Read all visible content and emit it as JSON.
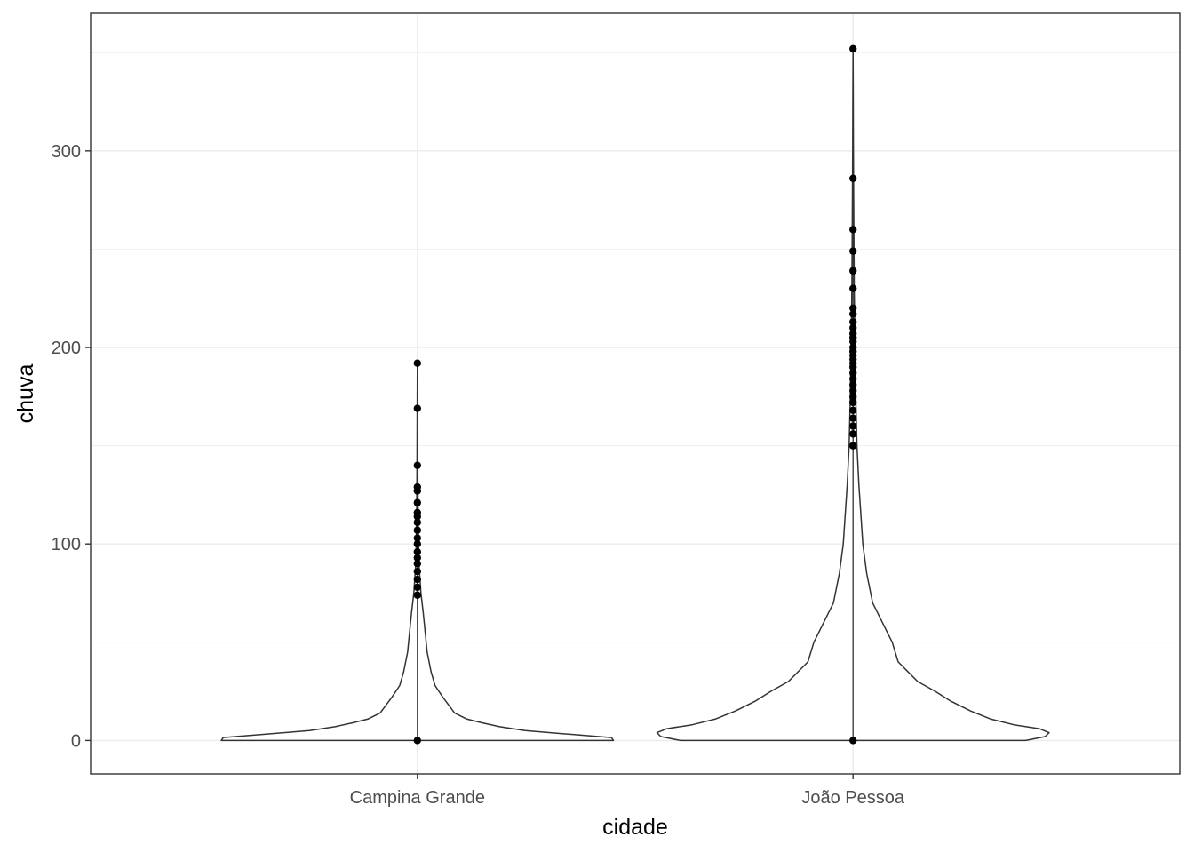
{
  "chart_data": {
    "type": "violin",
    "xlabel": "cidade",
    "ylabel": "chuva",
    "categories": [
      "Campina Grande",
      "João Pessoa"
    ],
    "ylim": [
      -17,
      370
    ],
    "yticks": [
      0,
      100,
      200,
      300
    ],
    "grid": true,
    "colors": {
      "grid": "#ebebeb",
      "outline": "#333333",
      "points": "#000000",
      "tick_label": "#4d4d4d"
    },
    "violins": [
      {
        "category": "Campina Grande",
        "range": [
          0,
          192
        ],
        "relative_width": [
          [
            0,
            1.0
          ],
          [
            1.5,
            0.99
          ],
          [
            3,
            0.8
          ],
          [
            5,
            0.55
          ],
          [
            7,
            0.42
          ],
          [
            9,
            0.33
          ],
          [
            11,
            0.25
          ],
          [
            14,
            0.19
          ],
          [
            18,
            0.16
          ],
          [
            22,
            0.13
          ],
          [
            28,
            0.09
          ],
          [
            35,
            0.07
          ],
          [
            45,
            0.05
          ],
          [
            55,
            0.04
          ],
          [
            65,
            0.03
          ],
          [
            75,
            0.018
          ],
          [
            90,
            0.008
          ],
          [
            110,
            0.004
          ],
          [
            140,
            0.002
          ],
          [
            170,
            0.001
          ],
          [
            192,
            0.0
          ]
        ],
        "points": [
          0,
          74,
          78,
          82,
          86,
          90,
          93,
          96,
          100,
          103,
          107,
          111,
          114,
          116,
          121,
          127,
          129,
          140,
          169,
          192
        ]
      },
      {
        "category": "João Pessoa",
        "range": [
          0,
          352
        ],
        "relative_width": [
          [
            0,
            0.88
          ],
          [
            2,
            0.98
          ],
          [
            4,
            1.0
          ],
          [
            6,
            0.95
          ],
          [
            8,
            0.82
          ],
          [
            11,
            0.7
          ],
          [
            15,
            0.6
          ],
          [
            20,
            0.5
          ],
          [
            25,
            0.42
          ],
          [
            30,
            0.33
          ],
          [
            40,
            0.23
          ],
          [
            50,
            0.2
          ],
          [
            60,
            0.15
          ],
          [
            70,
            0.1
          ],
          [
            85,
            0.07
          ],
          [
            100,
            0.05
          ],
          [
            130,
            0.03
          ],
          [
            150,
            0.02
          ],
          [
            170,
            0.015
          ],
          [
            200,
            0.01
          ],
          [
            230,
            0.006
          ],
          [
            260,
            0.004
          ],
          [
            300,
            0.002
          ],
          [
            330,
            0.001
          ],
          [
            352,
            0.0
          ]
        ],
        "points": [
          0,
          150,
          156,
          160,
          164,
          168,
          172,
          175,
          178,
          181,
          184,
          187,
          190,
          192,
          194,
          196,
          198,
          200,
          203,
          205,
          207,
          210,
          213,
          217,
          220,
          230,
          239,
          249,
          260,
          286,
          352
        ]
      }
    ]
  }
}
